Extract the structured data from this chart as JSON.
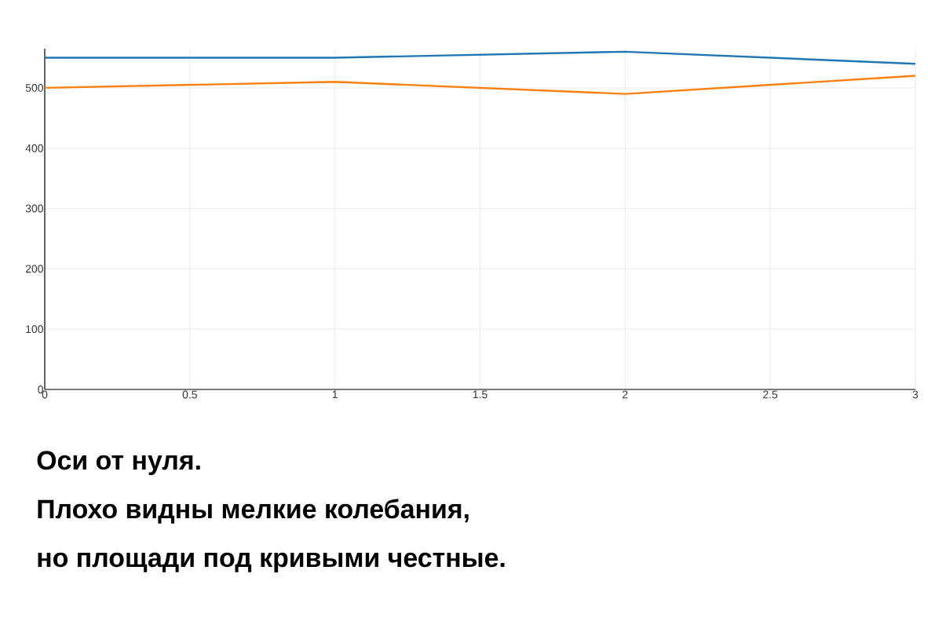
{
  "chart_data": {
    "type": "line",
    "x": [
      0,
      1,
      2,
      3
    ],
    "series": [
      {
        "color": "#1f77b4",
        "values": [
          550,
          550,
          560,
          540
        ]
      },
      {
        "color": "#ff7f0e",
        "values": [
          500,
          510,
          490,
          520
        ]
      }
    ],
    "xlim": [
      0,
      3
    ],
    "xticks": [
      0,
      0.5,
      1,
      1.5,
      2,
      2.5,
      3
    ],
    "ylim": [
      0,
      565
    ],
    "yticks": [
      0,
      100,
      200,
      300,
      400,
      500
    ],
    "grid": true,
    "marker": "none",
    "line_style": "solid",
    "annotations": [
      "Оси от нуля.",
      "Плохо видны мелкие колебания,",
      "но площади под кривыми честные."
    ]
  }
}
